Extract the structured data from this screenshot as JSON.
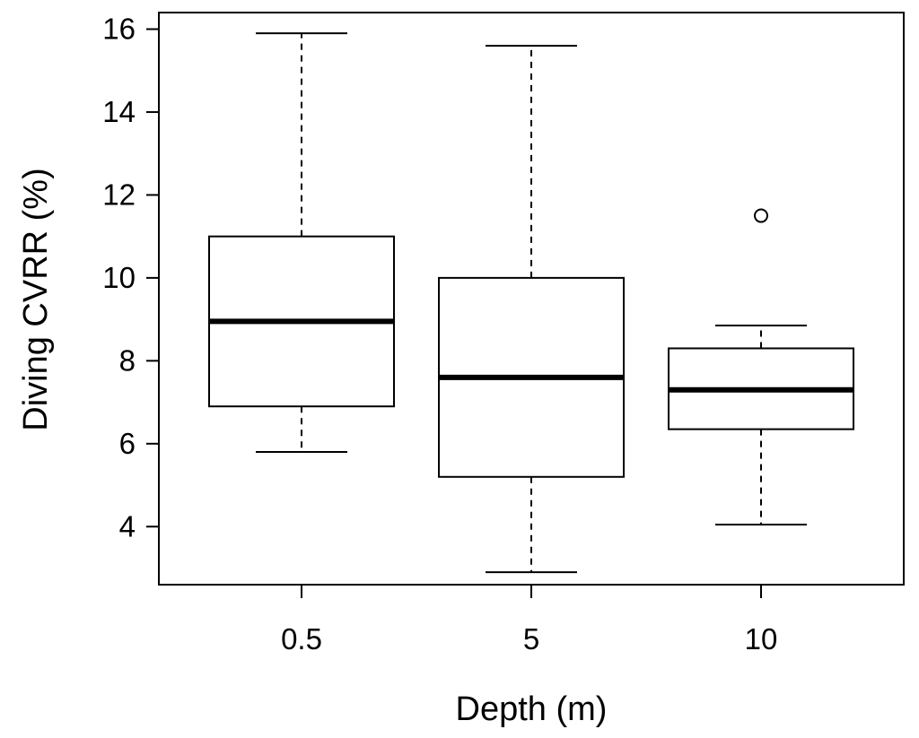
{
  "chart_data": {
    "type": "boxplot",
    "title": "",
    "xlabel": "Depth (m)",
    "ylabel": "Diving CVRR (%)",
    "ylim": [
      2.6,
      16.4
    ],
    "yticks": [
      4,
      6,
      8,
      10,
      12,
      14,
      16
    ],
    "ytick_labels": [
      "4",
      "6",
      "8",
      "10",
      "12",
      "14",
      "16"
    ],
    "grid": false,
    "legend": "none",
    "categories": [
      "0.5",
      "5",
      "10"
    ],
    "boxes": [
      {
        "category": "0.5",
        "whisker_low": 5.8,
        "q1": 6.9,
        "median": 8.95,
        "q3": 11.0,
        "whisker_high": 15.9,
        "outliers": []
      },
      {
        "category": "5",
        "whisker_low": 2.9,
        "q1": 5.2,
        "median": 7.6,
        "q3": 10.0,
        "whisker_high": 15.6,
        "outliers": []
      },
      {
        "category": "10",
        "whisker_low": 4.05,
        "q1": 6.35,
        "median": 7.3,
        "q3": 8.3,
        "whisker_high": 8.85,
        "outliers": [
          11.5
        ]
      }
    ],
    "colors": {
      "box_fill": "#ffffff",
      "stroke": "#000000"
    }
  }
}
